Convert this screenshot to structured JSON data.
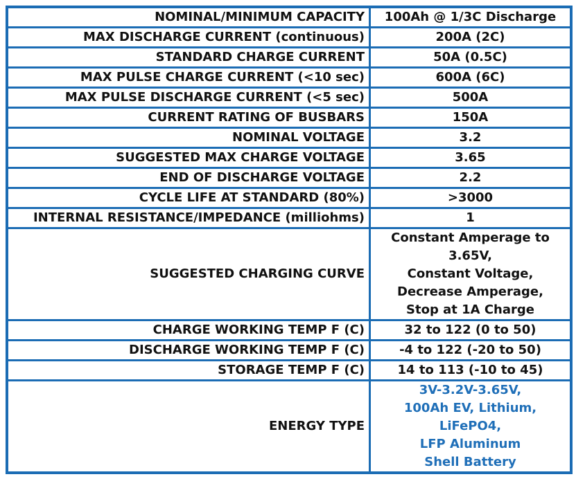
{
  "specs": {
    "rows": [
      {
        "label": "NOMINAL/MINIMUM CAPACITY",
        "value": "100Ah @ 1/3C Discharge"
      },
      {
        "label": "MAX DISCHARGE CURRENT (continuous)",
        "value": "200A (2C)"
      },
      {
        "label": "STANDARD CHARGE CURRENT",
        "value": "50A (0.5C)"
      },
      {
        "label": "MAX PULSE CHARGE CURRENT (<10 sec)",
        "value": "600A (6C)"
      },
      {
        "label": "MAX PULSE DISCHARGE CURRENT (<5 sec)",
        "value": "500A"
      },
      {
        "label": "CURRENT RATING OF BUSBARS",
        "value": "150A"
      },
      {
        "label": "NOMINAL VOLTAGE",
        "value": "3.2"
      },
      {
        "label": "SUGGESTED MAX CHARGE VOLTAGE",
        "value": "3.65"
      },
      {
        "label": "END OF DISCHARGE VOLTAGE",
        "value": "2.2"
      },
      {
        "label": "CYCLE LIFE AT STANDARD (80%)",
        "value": ">3000"
      },
      {
        "label": "INTERNAL RESISTANCE/IMPEDANCE (milliohms)",
        "value": "1"
      },
      {
        "label": "SUGGESTED CHARGING CURVE",
        "value": [
          "Constant Amperage to",
          "3.65V,",
          "Constant Voltage,",
          "Decrease Amperage,",
          "Stop at 1A Charge"
        ]
      },
      {
        "label": "CHARGE WORKING TEMP F (C)",
        "value": "32 to 122 (0 to 50)"
      },
      {
        "label": "DISCHARGE WORKING TEMP F (C)",
        "value": "-4 to 122 (-20 to 50)"
      },
      {
        "label": "STORAGE TEMP F (C)",
        "value": "14 to 113 (-10 to 45)"
      },
      {
        "label": "ENERGY TYPE",
        "value": [
          "3V-3.2V-3.65V,",
          "100Ah EV, Lithium,",
          "LiFePO4,",
          "LFP Aluminum",
          "Shell Battery"
        ]
      }
    ]
  },
  "colors": {
    "border": "#1b6cb4",
    "highlight_text": "#1f6fb8"
  }
}
